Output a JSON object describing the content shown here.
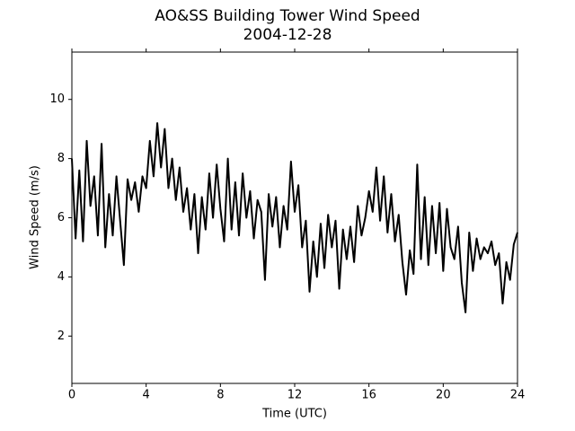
{
  "chart_data": {
    "type": "line",
    "title": "AO&SS Building Tower Wind Speed",
    "subtitle": "2004-12-28",
    "x_label": "Time (UTC)",
    "y_label": "Wind Speed (m/s)",
    "xlim": [
      0,
      24
    ],
    "xticks": [
      0,
      4,
      8,
      12,
      16,
      20,
      24
    ],
    "ylim": [
      0.4,
      11.6
    ],
    "yticks": [
      2,
      4,
      6,
      8,
      10
    ],
    "x": [
      0,
      0.2,
      0.4,
      0.6,
      0.8,
      1.0,
      1.2,
      1.4,
      1.6,
      1.8,
      2.0,
      2.2,
      2.4,
      2.6,
      2.8,
      3.0,
      3.2,
      3.4,
      3.6,
      3.8,
      4.0,
      4.2,
      4.4,
      4.6,
      4.8,
      5.0,
      5.2,
      5.4,
      5.6,
      5.8,
      6.0,
      6.2,
      6.4,
      6.6,
      6.8,
      7.0,
      7.2,
      7.4,
      7.6,
      7.8,
      8.0,
      8.2,
      8.4,
      8.6,
      8.8,
      9.0,
      9.2,
      9.4,
      9.6,
      9.8,
      10.0,
      10.2,
      10.4,
      10.6,
      10.8,
      11.0,
      11.2,
      11.4,
      11.6,
      11.8,
      12.0,
      12.2,
      12.4,
      12.6,
      12.8,
      13.0,
      13.2,
      13.4,
      13.6,
      13.8,
      14.0,
      14.2,
      14.4,
      14.6,
      14.8,
      15.0,
      15.2,
      15.4,
      15.6,
      15.8,
      16.0,
      16.2,
      16.4,
      16.6,
      16.8,
      17.0,
      17.2,
      17.4,
      17.6,
      17.8,
      18.0,
      18.2,
      18.4,
      18.6,
      18.8,
      19.0,
      19.2,
      19.4,
      19.6,
      19.8,
      20.0,
      20.2,
      20.4,
      20.6,
      20.8,
      21.0,
      21.2,
      21.4,
      21.6,
      21.8,
      22.0,
      22.2,
      22.4,
      22.6,
      22.8,
      23.0,
      23.2,
      23.4,
      23.6,
      23.8,
      24.0
    ],
    "series": [
      {
        "name": "Wind Speed",
        "color": "#000000",
        "values": [
          8.0,
          5.3,
          7.6,
          5.2,
          8.6,
          6.4,
          7.4,
          5.4,
          8.5,
          5.0,
          6.8,
          5.4,
          7.4,
          5.9,
          4.4,
          7.3,
          6.6,
          7.2,
          6.2,
          7.4,
          7.0,
          8.6,
          7.4,
          9.2,
          7.7,
          9.0,
          7.0,
          8.0,
          6.6,
          7.7,
          6.2,
          7.0,
          5.6,
          6.8,
          4.8,
          6.7,
          5.6,
          7.5,
          6.0,
          7.8,
          6.3,
          5.2,
          8.0,
          5.6,
          7.2,
          5.4,
          7.5,
          6.0,
          6.9,
          5.3,
          6.6,
          6.2,
          3.9,
          6.8,
          5.7,
          6.7,
          5.0,
          6.4,
          5.6,
          7.9,
          6.2,
          7.1,
          5.0,
          5.9,
          3.5,
          5.2,
          4.0,
          5.8,
          4.3,
          6.1,
          5.0,
          5.9,
          3.6,
          5.6,
          4.6,
          5.7,
          4.5,
          6.4,
          5.4,
          6.0,
          6.9,
          6.2,
          7.7,
          5.9,
          7.4,
          5.5,
          6.8,
          5.2,
          6.1,
          4.5,
          3.4,
          4.9,
          4.1,
          7.8,
          4.6,
          6.7,
          4.4,
          6.4,
          4.8,
          6.5,
          4.2,
          6.3,
          5.0,
          4.6,
          5.7,
          3.8,
          2.8,
          5.5,
          4.2,
          5.3,
          4.6,
          5.0,
          4.8,
          5.2,
          4.4,
          4.8,
          3.1,
          4.5,
          3.9,
          5.1,
          5.5
        ]
      }
    ]
  }
}
